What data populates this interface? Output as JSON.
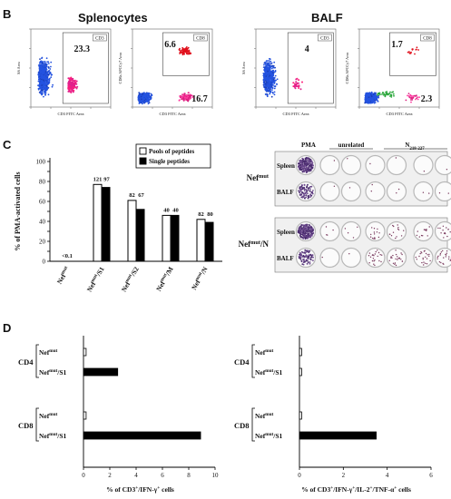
{
  "panel_b": {
    "letter": "B",
    "groups": [
      {
        "title": "Splenocytes"
      },
      {
        "title": "BALF"
      }
    ],
    "plots": [
      {
        "ylabel": "SS Area",
        "xlabel": "CD3 FITC Area",
        "gate": "CD3",
        "value": "23.3"
      },
      {
        "ylabel": "CD8a APCCy7 Area",
        "xlabel": "CD3 FITC Area",
        "gate": "CD8",
        "value_top": "6.6",
        "value_bottom": "16.7"
      },
      {
        "ylabel": "SS Area",
        "xlabel": "CD3 FITC Area",
        "gate": "CD3",
        "value": "4"
      },
      {
        "ylabel": "CD8a APCCy7 Area",
        "xlabel": "CD3 FITC Area",
        "gate": "CD8",
        "value_top": "1.7",
        "value_bottom": "2.3"
      }
    ]
  },
  "panel_c": {
    "letter": "C",
    "chart_data": {
      "type": "bar",
      "ylabel": "% of PMA-activated cells",
      "ylim": [
        0,
        100
      ],
      "yticks": [
        "0",
        "10",
        "20",
        "30",
        "40",
        "50",
        "60",
        "70",
        "80",
        "90",
        "100"
      ],
      "categories": [
        "Nef^mut",
        "Nef^mut/S1",
        "Nef^mut/S2",
        "Nef^mut/M",
        "Nef^mut/N"
      ],
      "category_labels": [
        {
          "base": "Nef",
          "sup": "mut",
          "suffix": ""
        },
        {
          "base": "Nef",
          "sup": "mut",
          "suffix": "/S1"
        },
        {
          "base": "Nef",
          "sup": "mut",
          "suffix": "/S2"
        },
        {
          "base": "Nef",
          "sup": "mut",
          "suffix": "/M"
        },
        {
          "base": "Nef",
          "sup": "mut",
          "suffix": "/N"
        }
      ],
      "series": [
        {
          "name": "Pools of peptides",
          "values": [
            0,
            77,
            61,
            46,
            42
          ]
        },
        {
          "name": "Single peptides",
          "values": [
            0,
            74,
            52,
            46,
            39
          ]
        }
      ],
      "labels_pools": [
        "<0.1",
        "121",
        "82",
        "40",
        "82"
      ],
      "labels_single": [
        "",
        "97",
        "67",
        "40",
        "80"
      ]
    },
    "elispot": {
      "header_pma": "PMA",
      "header_unrelated": "unrelated",
      "header_n": "N",
      "header_n_sub": "218-227",
      "groups": [
        {
          "base": "Nef",
          "sup": "mut",
          "suffix": "",
          "rows": [
            "Spleen",
            "BALF"
          ]
        },
        {
          "base": "Nef",
          "sup": "mut",
          "suffix": "/N",
          "rows": [
            "Spleen",
            "BALF"
          ]
        }
      ]
    }
  },
  "panel_d": {
    "letter": "D",
    "charts": [
      {
        "chart_data": {
          "type": "bar",
          "orientation": "horizontal",
          "xlabel": "% of CD3+/IFN-γ+ cells",
          "xlim": [
            0,
            10
          ],
          "xticks": [
            "0",
            "2",
            "4",
            "6",
            "8",
            "10"
          ],
          "groups": [
            {
              "name": "CD4",
              "rows": [
                {
                  "label": "Nef^mut",
                  "value": 0.2
                },
                {
                  "label": "Nef^mut/S1",
                  "value": 2.6
                }
              ]
            },
            {
              "name": "CD8",
              "rows": [
                {
                  "label": "Nef^mut",
                  "value": 0.2
                },
                {
                  "label": "Nef^mut/S1",
                  "value": 8.9
                }
              ]
            }
          ]
        },
        "xlabel_parts": {
          "pre": "% of CD3",
          "sup1": "+",
          "mid": "/IFN-γ",
          "sup2": "+",
          "post": " cells"
        }
      },
      {
        "chart_data": {
          "type": "bar",
          "orientation": "horizontal",
          "xlabel": "% of CD3+/IFN-γ+/IL-2+/TNF-α+ cells",
          "xlim": [
            0,
            6
          ],
          "xticks": [
            "0",
            "2",
            "4",
            "6"
          ],
          "groups": [
            {
              "name": "CD4",
              "rows": [
                {
                  "label": "Nef^mut",
                  "value": 0.1
                },
                {
                  "label": "Nef^mut/S1",
                  "value": 0.1
                }
              ]
            },
            {
              "name": "CD8",
              "rows": [
                {
                  "label": "Nef^mut",
                  "value": 0.1
                },
                {
                  "label": "Nef^mut/S1",
                  "value": 3.5
                }
              ]
            }
          ]
        },
        "xlabel_parts": {
          "pre": "% of CD3",
          "sup1": "+",
          "mid": "/IFN-γ",
          "sup2": "+",
          "mid2": "/IL-2",
          "sup3": "+",
          "mid3": "/TNF-α",
          "sup4": "+",
          "post": " cells"
        }
      }
    ]
  }
}
